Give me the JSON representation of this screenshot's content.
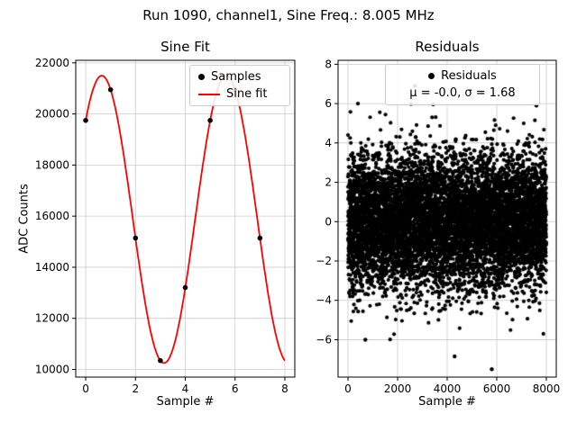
{
  "figure": {
    "title": "Run 1090, channel1, Sine Freq.: 8.005 MHz",
    "background": "#ffffff"
  },
  "style": {
    "grid_color": "#cccccc",
    "spine_color": "#000000",
    "marker_color": "#000000",
    "fit_color": "#ff0000",
    "legend_border": "#cbcbcb"
  },
  "chart_data": [
    {
      "type": "scatter+line",
      "title": "Sine Fit",
      "xlabel": "Sample #",
      "ylabel": "ADC Counts",
      "xlim": [
        -0.4,
        8.4
      ],
      "ylim": [
        9700,
        22100
      ],
      "xticks": [
        0,
        2,
        4,
        6,
        8
      ],
      "yticks": [
        10000,
        12000,
        14000,
        16000,
        18000,
        20000,
        22000
      ],
      "grid": true,
      "legend": {
        "position": "upper right",
        "entries": [
          {
            "label": "Samples",
            "marker": "dot",
            "color": "#000000"
          },
          {
            "label": "Sine fit",
            "marker": "line",
            "color": "#ff0000"
          }
        ]
      },
      "samples": {
        "x": [
          0,
          1,
          2,
          3,
          4,
          5,
          6,
          7
        ],
        "y": [
          19748,
          20949,
          15141,
          10345,
          13206,
          19746,
          20949,
          15141
        ]
      },
      "fit": {
        "offset": 15875,
        "amplitude": 5625,
        "period_samples": 5.0,
        "phase_rad": 0.759,
        "x_range": [
          0,
          8
        ],
        "color": "#ff0000"
      }
    },
    {
      "type": "scatter",
      "title": "Residuals",
      "xlabel": "Sample #",
      "ylabel": "",
      "xlim": [
        -400,
        8400
      ],
      "ylim": [
        -7.9,
        8.2
      ],
      "xticks": [
        0,
        2000,
        4000,
        6000,
        8000
      ],
      "yticks": [
        -6,
        -4,
        -2,
        0,
        2,
        4,
        6,
        8
      ],
      "grid": true,
      "legend": {
        "position": "upper center",
        "entries": [
          {
            "label": "Residuals",
            "marker": "dot",
            "color": "#000000"
          }
        ],
        "stats_label": "μ = -0.0, σ = 1.68"
      },
      "distribution": {
        "n": 8000,
        "mu": -0.0,
        "sigma": 1.68,
        "x_min": 0,
        "x_max": 8000,
        "seed": 1090
      },
      "outliers": [
        [
          2700,
          6.9
        ],
        [
          400,
          6.0
        ],
        [
          700,
          -6.0
        ],
        [
          4300,
          -6.85
        ],
        [
          5800,
          -7.5
        ],
        [
          7600,
          5.9
        ]
      ]
    }
  ]
}
